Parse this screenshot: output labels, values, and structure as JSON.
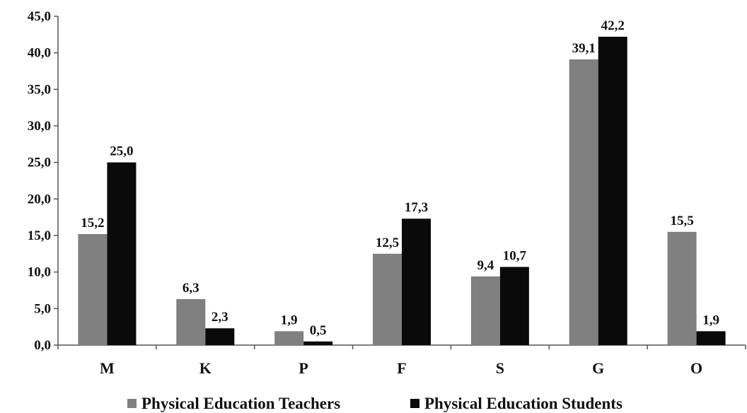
{
  "chart_data": {
    "type": "bar",
    "categories": [
      "M",
      "K",
      "P",
      "F",
      "S",
      "G",
      "O"
    ],
    "series": [
      {
        "name": "Physical Education Teachers",
        "color": "#808080",
        "values": [
          15.2,
          6.3,
          1.9,
          12.5,
          9.4,
          39.1,
          15.5
        ],
        "labels": [
          "15,2",
          "6,3",
          "1,9",
          "12,5",
          "9,4",
          "39,1",
          "15,5"
        ]
      },
      {
        "name": "Physical Education Students",
        "color": "#0a0a0a",
        "values": [
          25.0,
          2.3,
          0.5,
          17.3,
          10.7,
          42.2,
          1.9
        ],
        "labels": [
          "25,0",
          "2,3",
          "0,5",
          "17,3",
          "10,7",
          "42,2",
          "1,9"
        ]
      }
    ],
    "ylim": [
      0,
      45
    ],
    "yticks": [
      0,
      5,
      10,
      15,
      20,
      25,
      30,
      35,
      40,
      45
    ],
    "ytick_labels": [
      "0,0",
      "5,0",
      "10,0",
      "15,0",
      "20,0",
      "25,0",
      "30,0",
      "35,0",
      "40,0",
      "45,0"
    ],
    "grid": false,
    "legend_position": "bottom",
    "title": "",
    "xlabel": "",
    "ylabel": ""
  }
}
